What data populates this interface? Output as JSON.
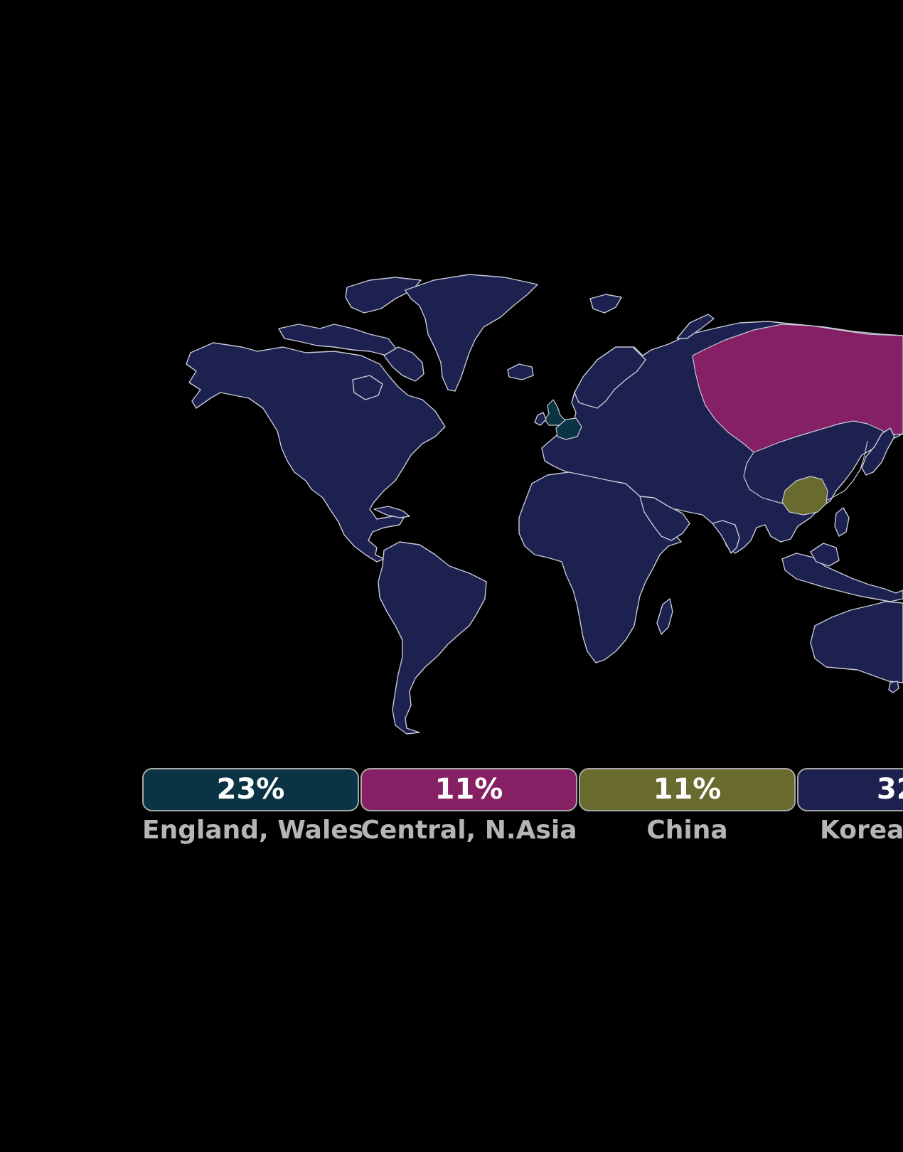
{
  "colors": {
    "background": "#000000",
    "land": "#1c2150",
    "border": "#c7c9d6",
    "label_text": "#b5b5b5",
    "value_text": "#ffffff"
  },
  "map": {
    "regions": [
      {
        "name": "England, Wales",
        "color": "#0a3343"
      },
      {
        "name": "Central, N.Asia",
        "color": "#842063"
      },
      {
        "name": "China",
        "color": "#686a2e"
      },
      {
        "name": "Korea,",
        "color": "#1c2150"
      }
    ]
  },
  "legend": [
    {
      "value": "23%",
      "label": "England, Wales",
      "color": "#0a3343"
    },
    {
      "value": "11%",
      "label": "Central, N.Asia",
      "color": "#842063"
    },
    {
      "value": "11%",
      "label": "China",
      "color": "#686a2e"
    },
    {
      "value": "32",
      "label": "Korea,",
      "color": "#1c2150"
    }
  ]
}
